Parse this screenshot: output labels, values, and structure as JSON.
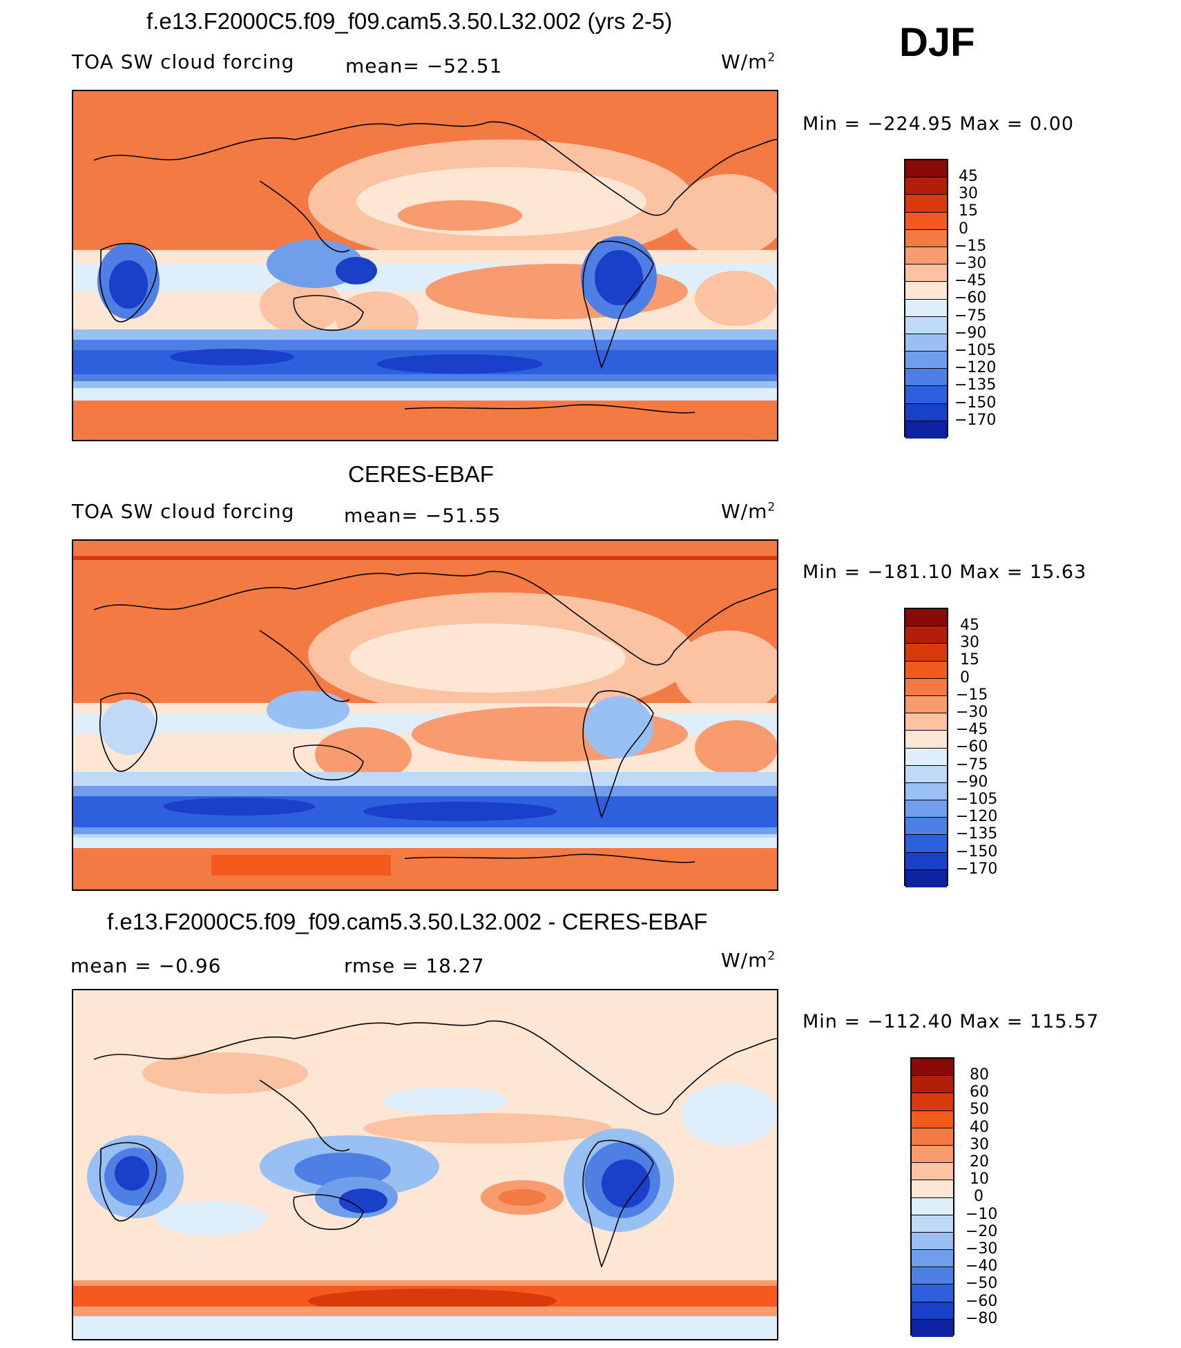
{
  "season": "DJF",
  "panels": [
    {
      "title": "f.e13.F2000C5.f09_f09.cam5.3.50.L32.002 (yrs 2-5)",
      "left_label": "TOA SW cloud forcing",
      "center_label": "mean=  −52.51",
      "units": "W/m",
      "units_exp": "2",
      "minmax": "Min  =  −224.95  Max  =     0.00",
      "colorbar_ticks": [
        "45",
        "30",
        "15",
        "0",
        "−15",
        "−30",
        "−45",
        "−60",
        "−75",
        "−90",
        "−105",
        "−120",
        "−135",
        "−150",
        "−170"
      ]
    },
    {
      "title": "CERES-EBAF",
      "left_label": "TOA SW cloud forcing",
      "center_label": "mean=  −51.55",
      "units": "W/m",
      "units_exp": "2",
      "minmax": "Min  =  −181.10  Max  =    15.63",
      "colorbar_ticks": [
        "45",
        "30",
        "15",
        "0",
        "−15",
        "−30",
        "−45",
        "−60",
        "−75",
        "−90",
        "−105",
        "−120",
        "−135",
        "−150",
        "−170"
      ]
    },
    {
      "title": "f.e13.F2000C5.f09_f09.cam5.3.50.L32.002 - CERES-EBAF",
      "left_label": "mean  =    −0.96",
      "center_label": "rmse  =    18.27",
      "units": "W/m",
      "units_exp": "2",
      "minmax": "Min  =  −112.40  Max  =  115.57",
      "colorbar_ticks": [
        "80",
        "60",
        "50",
        "40",
        "30",
        "20",
        "10",
        "0",
        "−10",
        "−20",
        "−30",
        "−40",
        "−50",
        "−60",
        "−80"
      ]
    }
  ],
  "palette": {
    "levels": [
      "#8a0a05",
      "#b21e07",
      "#d83a0c",
      "#f4591e",
      "#f47a44",
      "#f89c70",
      "#fbc3a2",
      "#fde6d4",
      "#dfeefb",
      "#bfdaf7",
      "#98c0f2",
      "#6f9eeb",
      "#4d7fe4",
      "#2e5fdc",
      "#1a3fc8",
      "#0c22a0",
      "#050f78"
    ],
    "coast": "#000000"
  }
}
